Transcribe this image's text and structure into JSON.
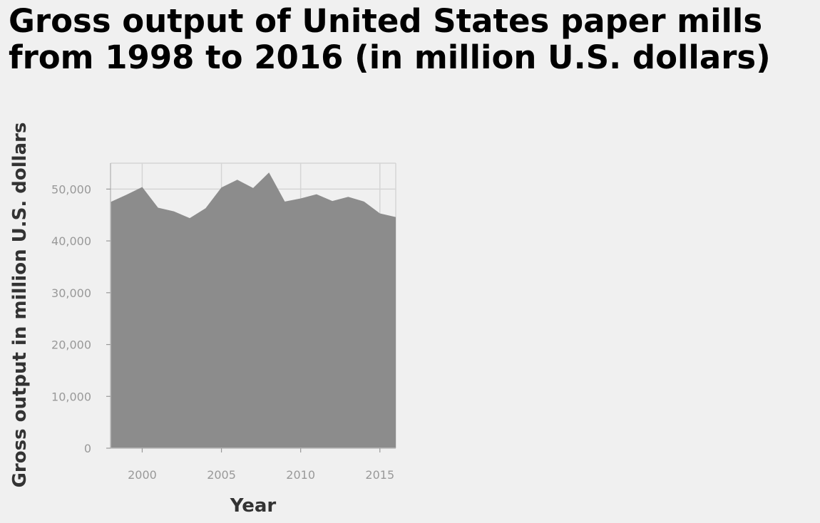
{
  "chart_data": {
    "type": "area",
    "title_lines": [
      "Gross output of United States paper mills",
      "from 1998 to 2016 (in million U.S. dollars)"
    ],
    "xlabel": "Year",
    "ylabel": "Gross output in million U.S. dollars",
    "x": [
      1998,
      1999,
      2000,
      2001,
      2002,
      2003,
      2004,
      2005,
      2006,
      2007,
      2008,
      2009,
      2010,
      2011,
      2012,
      2013,
      2014,
      2015,
      2016
    ],
    "values": [
      47500,
      48900,
      50400,
      46400,
      45700,
      44400,
      46300,
      50300,
      51800,
      50200,
      53200,
      47600,
      48200,
      49000,
      47700,
      48500,
      47600,
      45300,
      44600
    ],
    "xlim": [
      1998,
      2016
    ],
    "ylim": [
      0,
      55000
    ],
    "x_ticks": [
      2000,
      2005,
      2010,
      2015
    ],
    "x_tick_labels": [
      "2000",
      "2005",
      "2010",
      "2015"
    ],
    "y_ticks": [
      0,
      10000,
      20000,
      30000,
      40000,
      50000
    ],
    "y_tick_labels": [
      "0",
      "10,000",
      "20,000",
      "30,000",
      "40,000",
      "50,000"
    ],
    "grid": true,
    "fill_color": "#8c8c8c",
    "background_color": "#f0f0f0"
  }
}
